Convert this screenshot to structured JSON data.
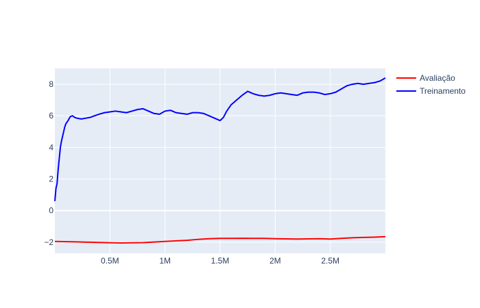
{
  "chart_data": {
    "type": "line",
    "title": "",
    "xlabel": "",
    "ylabel": "",
    "xlim": [
      0,
      3000000
    ],
    "ylim": [
      -2.7,
      9.0
    ],
    "x_ticks": [
      {
        "value": 500000,
        "label": "0.5M"
      },
      {
        "value": 1000000,
        "label": "1M"
      },
      {
        "value": 1500000,
        "label": "1.5M"
      },
      {
        "value": 2000000,
        "label": "2M"
      },
      {
        "value": 2500000,
        "label": "2.5M"
      }
    ],
    "y_ticks": [
      {
        "value": -2,
        "label": "−2"
      },
      {
        "value": 0,
        "label": "0"
      },
      {
        "value": 2,
        "label": "2"
      },
      {
        "value": 4,
        "label": "4"
      },
      {
        "value": 6,
        "label": "6"
      },
      {
        "value": 8,
        "label": "8"
      }
    ],
    "grid": true,
    "legend_position": "top-right",
    "plot_background": "#e5ecf6",
    "grid_color": "#ffffff",
    "series": [
      {
        "name": "Avaliação",
        "color": "#ff0000",
        "x": [
          0,
          200000,
          400000,
          600000,
          800000,
          1000000,
          1200000,
          1300000,
          1400000,
          1500000,
          1600000,
          1700000,
          1800000,
          1900000,
          2000000,
          2100000,
          2200000,
          2300000,
          2400000,
          2500000,
          2600000,
          2700000,
          2800000,
          2900000,
          3000000
        ],
        "y": [
          -1.95,
          -1.98,
          -2.02,
          -2.05,
          -2.03,
          -1.95,
          -1.88,
          -1.82,
          -1.78,
          -1.76,
          -1.76,
          -1.75,
          -1.76,
          -1.76,
          -1.78,
          -1.79,
          -1.8,
          -1.79,
          -1.78,
          -1.8,
          -1.76,
          -1.72,
          -1.7,
          -1.68,
          -1.65
        ]
      },
      {
        "name": "Treinamento",
        "color": "#0000ff",
        "x": [
          0,
          10000,
          20000,
          30000,
          40000,
          50000,
          60000,
          70000,
          80000,
          90000,
          100000,
          120000,
          140000,
          160000,
          180000,
          200000,
          240000,
          280000,
          320000,
          360000,
          400000,
          450000,
          500000,
          550000,
          600000,
          650000,
          700000,
          750000,
          800000,
          850000,
          900000,
          950000,
          1000000,
          1050000,
          1100000,
          1150000,
          1200000,
          1250000,
          1300000,
          1350000,
          1400000,
          1450000,
          1500000,
          1530000,
          1560000,
          1600000,
          1650000,
          1700000,
          1750000,
          1800000,
          1850000,
          1900000,
          1950000,
          2000000,
          2050000,
          2100000,
          2150000,
          2200000,
          2250000,
          2300000,
          2350000,
          2400000,
          2450000,
          2500000,
          2550000,
          2600000,
          2650000,
          2700000,
          2750000,
          2800000,
          2850000,
          2900000,
          2950000,
          3000000
        ],
        "y": [
          0.6,
          1.4,
          1.7,
          2.6,
          3.3,
          4.0,
          4.4,
          4.7,
          5.0,
          5.3,
          5.5,
          5.7,
          5.95,
          6.0,
          5.9,
          5.85,
          5.8,
          5.85,
          5.9,
          6.0,
          6.1,
          6.2,
          6.25,
          6.3,
          6.25,
          6.2,
          6.3,
          6.4,
          6.45,
          6.3,
          6.15,
          6.1,
          6.3,
          6.35,
          6.2,
          6.15,
          6.1,
          6.2,
          6.2,
          6.15,
          6.0,
          5.85,
          5.7,
          5.9,
          6.3,
          6.7,
          7.0,
          7.3,
          7.55,
          7.4,
          7.3,
          7.25,
          7.3,
          7.4,
          7.45,
          7.4,
          7.35,
          7.3,
          7.45,
          7.5,
          7.5,
          7.45,
          7.35,
          7.4,
          7.5,
          7.7,
          7.9,
          8.0,
          8.05,
          8.0,
          8.05,
          8.1,
          8.2,
          8.4
        ]
      }
    ]
  }
}
